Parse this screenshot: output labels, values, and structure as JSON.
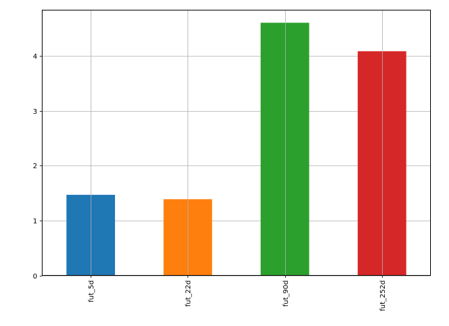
{
  "chart_data": {
    "type": "bar",
    "title": "",
    "xlabel": "",
    "ylabel": "",
    "categories": [
      "fut_5d",
      "fut_22d",
      "fut_90d",
      "fut_252d"
    ],
    "values": [
      1.47,
      1.39,
      4.61,
      4.09
    ],
    "colors": [
      "#1f77b4",
      "#ff7f0e",
      "#2ca02c",
      "#d62728"
    ],
    "ylim": [
      0,
      4.84
    ],
    "yticks": [
      0,
      1,
      2,
      3,
      4
    ],
    "grid": true,
    "legend": "none",
    "xtick_rotation": "vertical"
  }
}
